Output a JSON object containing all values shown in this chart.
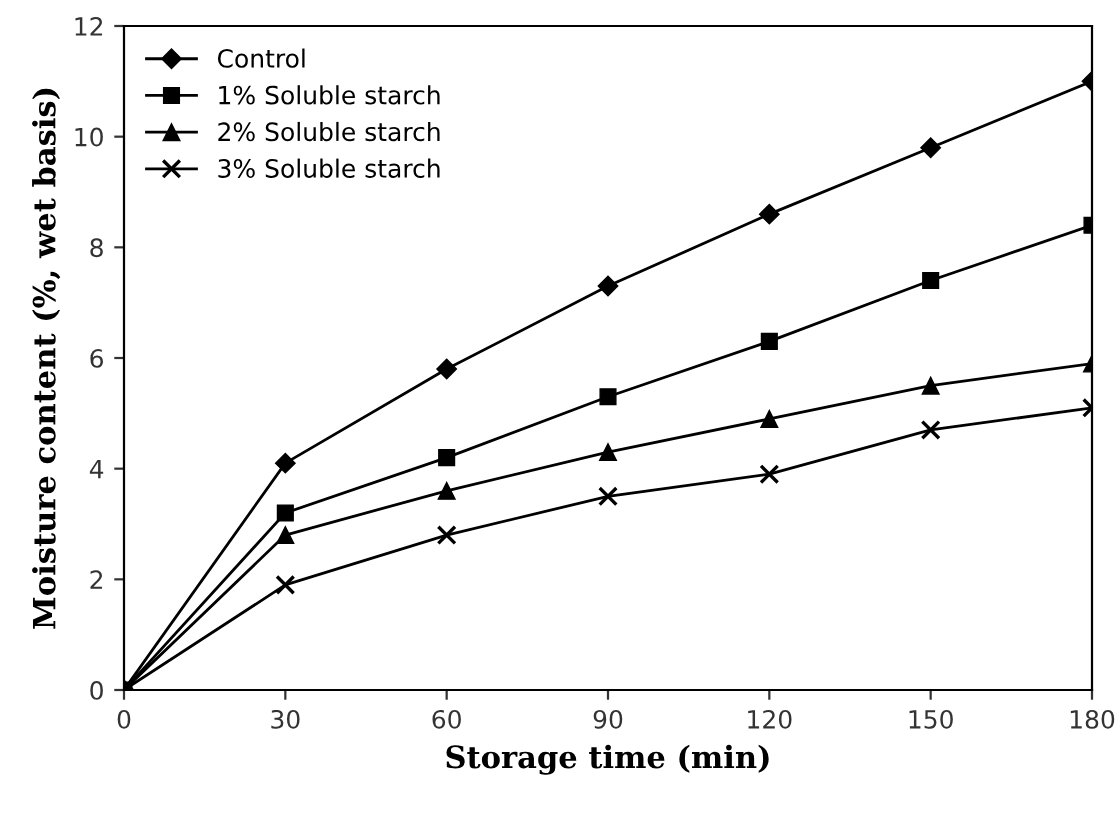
{
  "chart_data": {
    "type": "line",
    "xlabel": "Storage time (min)",
    "ylabel": "Moisture content (%, wet basis)",
    "x": [
      0,
      30,
      60,
      90,
      120,
      150,
      180
    ],
    "series": [
      {
        "name": "Control",
        "color": "#000000",
        "marker": "diamond",
        "values": [
          0,
          4.1,
          5.8,
          7.3,
          8.6,
          9.8,
          11.0
        ]
      },
      {
        "name": "1% Soluble starch",
        "color": "#000000",
        "marker": "square",
        "values": [
          0,
          3.2,
          4.2,
          5.3,
          6.3,
          7.4,
          8.4
        ]
      },
      {
        "name": "2% Soluble starch",
        "color": "#000000",
        "marker": "triangle",
        "values": [
          0,
          2.8,
          3.6,
          4.3,
          4.9,
          5.5,
          5.9
        ]
      },
      {
        "name": "3% Soluble starch",
        "color": "#000000",
        "marker": "cross",
        "values": [
          0,
          1.9,
          2.8,
          3.5,
          3.9,
          4.7,
          5.1
        ]
      }
    ],
    "xlim": [
      0,
      180
    ],
    "xticks": [
      0,
      30,
      60,
      90,
      120,
      150,
      180
    ],
    "ylim": [
      0,
      12
    ],
    "yticks": [
      0,
      2,
      4,
      6,
      8,
      10,
      12
    ],
    "grid": false,
    "legend": "top left",
    "line_style": "solid"
  }
}
